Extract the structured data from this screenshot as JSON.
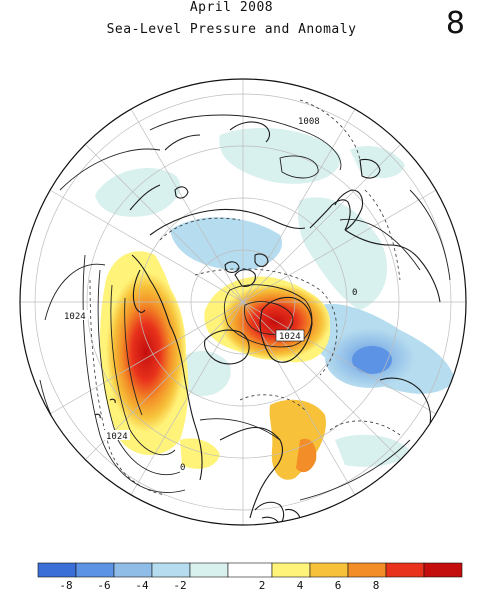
{
  "header": {
    "line1": "April 2008",
    "line2": "Sea-Level Pressure and Anomaly",
    "panel_number": "8"
  },
  "map": {
    "projection": "north-polar-stereographic",
    "contour_labels": [
      {
        "id": "label-1008",
        "text": "1008"
      },
      {
        "id": "label-1024-west",
        "text": "1024"
      },
      {
        "id": "label-1024-south",
        "text": "1024"
      },
      {
        "id": "label-1024-east",
        "text": "1024"
      },
      {
        "id": "label-0-a",
        "text": "0"
      },
      {
        "id": "label-0-b",
        "text": "0"
      }
    ],
    "anomaly_regions": [
      {
        "name": "north-pacific-positive",
        "sign": "positive",
        "peak": 8
      },
      {
        "name": "arctic-greenland-positive",
        "sign": "positive",
        "peak": 8
      },
      {
        "name": "north-atlantic-negative",
        "sign": "negative",
        "peak": -6
      },
      {
        "name": "eurasia-negative",
        "sign": "negative",
        "peak": -4
      },
      {
        "name": "canada-positive",
        "sign": "positive",
        "peak": 4
      }
    ]
  },
  "colorbar": {
    "tick_labels": [
      "-8",
      "-6",
      "-4",
      "-2",
      "2",
      "4",
      "6",
      "8"
    ],
    "colors": [
      "#3a6fd8",
      "#5d93e4",
      "#8fbde8",
      "#b6dcef",
      "#d8f0ee",
      "#ffffff",
      "#fff37a",
      "#f7c23a",
      "#f38d27",
      "#e8321c",
      "#c40d0d"
    ]
  }
}
